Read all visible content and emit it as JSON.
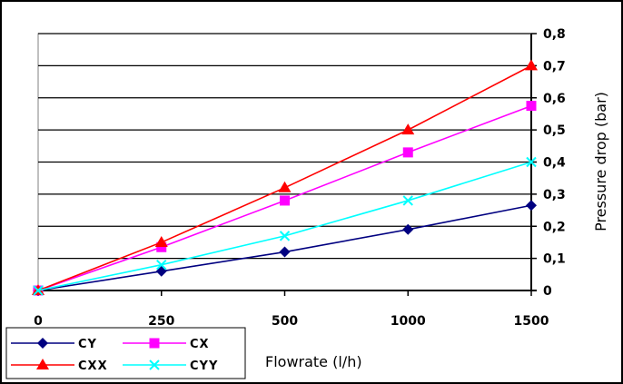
{
  "chart_data": {
    "type": "line",
    "title": "",
    "xlabel": "Flowrate (l/h)",
    "ylabel": "Pressure drop (bar)",
    "x_categories": [
      "0",
      "250",
      "500",
      "1000",
      "1500"
    ],
    "y_ticks": [
      "0",
      "0,1",
      "0,2",
      "0,3",
      "0,4",
      "0,5",
      "0,6",
      "0,7",
      "0,8"
    ],
    "ylim": [
      0,
      0.8
    ],
    "y_axis_position": "right",
    "grid": "horizontal",
    "legend_position": "bottom-left",
    "series": [
      {
        "name": "CY",
        "color": "#000080",
        "marker": "diamond",
        "values": [
          0,
          0.06,
          0.12,
          0.19,
          0.265
        ]
      },
      {
        "name": "CX",
        "color": "#ff00ff",
        "marker": "square",
        "values": [
          0,
          0.135,
          0.28,
          0.43,
          0.575
        ]
      },
      {
        "name": "CXX",
        "color": "#ff0000",
        "marker": "triangle",
        "values": [
          0,
          0.15,
          0.32,
          0.5,
          0.7
        ]
      },
      {
        "name": "CYY",
        "color": "#00ffff",
        "marker": "x",
        "values": [
          0,
          0.08,
          0.17,
          0.28,
          0.4
        ]
      }
    ]
  }
}
